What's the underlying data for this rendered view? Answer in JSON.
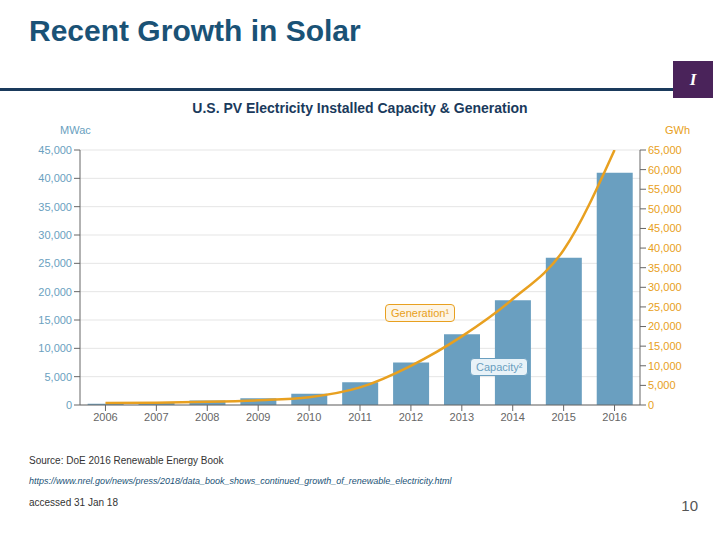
{
  "chart_data": {
    "type": "bar_line",
    "title": "Recent Growth in Solar",
    "subtitle": "U.S. PV Electricity Installed Capacity & Generation",
    "y_label": "MWac",
    "y2_label": "GWh",
    "categories": [
      "2006",
      "2007",
      "2008",
      "2009",
      "2010",
      "2011",
      "2012",
      "2013",
      "2014",
      "2015",
      "2016"
    ],
    "series": [
      {
        "type": "bar",
        "color": "#6a9fc0",
        "values": [
          200,
          400,
          800,
          1200,
          2000,
          4000,
          7500,
          12500,
          18500,
          26000,
          41000
        ]
      },
      {
        "type": "line",
        "axis": "y2",
        "color": "#e8a020",
        "values": [
          500,
          600,
          800,
          1200,
          2000,
          4500,
          10000,
          17500,
          27000,
          39500,
          65000
        ]
      }
    ],
    "ylim": [
      0,
      45000
    ],
    "yticks": [
      0,
      {
        "value": 5000,
        "label": "5,000"
      },
      {
        "value": 10000,
        "label": "10,000"
      },
      {
        "value": 15000,
        "label": "15,000"
      },
      {
        "value": 20000,
        "label": "20,000"
      },
      {
        "value": 25000,
        "label": "25,000"
      },
      {
        "value": 30000,
        "label": "30,000"
      },
      {
        "value": 35000,
        "label": "35,000"
      },
      {
        "value": 40000,
        "label": "40,000"
      },
      {
        "value": 45000,
        "label": "45,000"
      }
    ],
    "y2lim": [
      0,
      65000
    ],
    "y2ticks": [
      0,
      {
        "value": 5000,
        "label": "5,000"
      },
      {
        "value": 10000,
        "label": "10,000"
      },
      {
        "value": 15000,
        "label": "15,000"
      },
      {
        "value": 20000,
        "label": "20,000"
      },
      {
        "value": 25000,
        "label": "25,000"
      },
      {
        "value": 30000,
        "label": "30,000"
      },
      {
        "value": 35000,
        "label": "35,000"
      },
      {
        "value": 40000,
        "label": "40,000"
      },
      {
        "value": 45000,
        "label": "45,000"
      },
      {
        "value": 50000,
        "label": "50,000"
      },
      {
        "value": 55000,
        "label": "55,000"
      },
      {
        "value": 60000,
        "label": "60,000"
      },
      {
        "value": 65000,
        "label": "65,000"
      }
    ],
    "grid": true,
    "annotations": [
      {
        "text": "Generation¹",
        "color": "#e8a020"
      },
      {
        "text": "Capacity²",
        "color": "#6a9fc0"
      },
      {
        "text": "Source:  DoE 2016 Renewable Energy Book"
      },
      {
        "text": "https://www.nrel.gov/news/press/2018/data_book_shows_continued_growth_of_renewable_electricity.html"
      },
      {
        "text": "accessed 31 Jan 18"
      },
      {
        "text": "10"
      },
      {
        "text": "I"
      }
    ]
  }
}
